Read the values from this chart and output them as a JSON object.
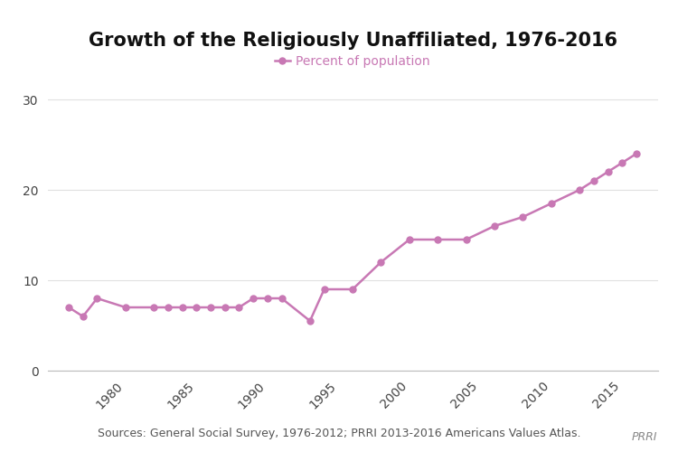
{
  "title": "Growth of the Religiously Unaffiliated, 1976-2016",
  "legend_label": "Percent of population",
  "source_text": "Sources: General Social Survey, 1976-2012; PRRI 2013-2016 Americans Values Atlas.",
  "prri_text": "PRRI",
  "years": [
    1976,
    1977,
    1978,
    1980,
    1982,
    1983,
    1984,
    1985,
    1986,
    1987,
    1988,
    1989,
    1990,
    1991,
    1993,
    1994,
    1996,
    1998,
    2000,
    2002,
    2004,
    2006,
    2008,
    2010,
    2012,
    2013,
    2014,
    2015,
    2016
  ],
  "values": [
    7.0,
    6.0,
    8.0,
    7.0,
    7.0,
    7.0,
    7.0,
    7.0,
    7.0,
    7.0,
    7.0,
    8.0,
    8.0,
    8.0,
    5.5,
    9.0,
    9.0,
    12.0,
    14.5,
    14.5,
    14.5,
    16.0,
    17.0,
    18.5,
    20.0,
    21.0,
    22.0,
    23.0,
    24.0
  ],
  "line_color": "#c878b4",
  "marker_color": "#c878b4",
  "marker_size": 5,
  "line_width": 1.8,
  "ylim": [
    0,
    32
  ],
  "yticks": [
    0,
    10,
    20,
    30
  ],
  "xlim_min": 1974.5,
  "xlim_max": 2017.5,
  "xticks": [
    1980,
    1985,
    1990,
    1995,
    2000,
    2005,
    2010,
    2015
  ],
  "background_color": "#ffffff",
  "title_fontsize": 15,
  "legend_fontsize": 10,
  "tick_fontsize": 10,
  "source_fontsize": 9,
  "grid_color": "#e0e0e0"
}
